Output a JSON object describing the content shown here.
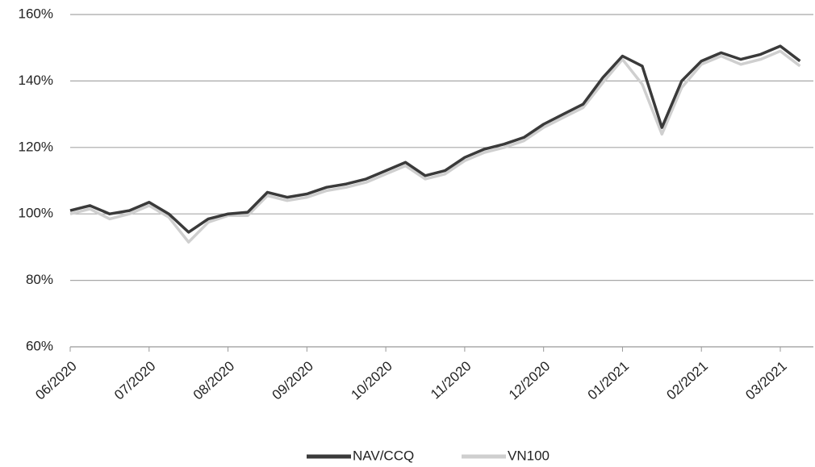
{
  "chart_data": {
    "type": "line",
    "categories": [
      "06/2020",
      null,
      null,
      null,
      "07/2020",
      null,
      null,
      null,
      "08/2020",
      null,
      null,
      null,
      "09/2020",
      null,
      null,
      null,
      "10/2020",
      null,
      null,
      null,
      "11/2020",
      null,
      null,
      null,
      "12/2020",
      null,
      null,
      null,
      "01/2021",
      null,
      null,
      null,
      "02/2021",
      null,
      null,
      null,
      "03/2021",
      null
    ],
    "series": [
      {
        "name": "NAV/CCQ",
        "color": "#3a3a3a",
        "values": [
          101,
          102.5,
          100,
          101,
          103.5,
          100,
          94.5,
          98.5,
          100,
          100.5,
          106.5,
          105,
          106,
          108,
          109,
          110.5,
          113,
          115.5,
          111.5,
          113,
          117,
          119.5,
          121,
          123,
          127,
          130,
          133,
          141,
          147.5,
          144.5,
          126,
          140,
          146,
          148.5,
          146.5,
          148,
          150.5,
          146
        ]
      },
      {
        "name": "VN100",
        "color": "#cfcfcf",
        "values": [
          100,
          101.5,
          98.5,
          100,
          102.5,
          99,
          91.5,
          97.5,
          99.5,
          99.5,
          105.5,
          104,
          105,
          107,
          108,
          109.5,
          112,
          114.5,
          110.5,
          112,
          116,
          118.5,
          120,
          122,
          126,
          129,
          132,
          139.5,
          146.5,
          139,
          124,
          138,
          145,
          147.5,
          145,
          146.5,
          149,
          144.5
        ]
      }
    ],
    "ylim": [
      60,
      160
    ],
    "yticks": [
      {
        "value": 60,
        "label": "60%"
      },
      {
        "value": 80,
        "label": "80%"
      },
      {
        "value": 100,
        "label": "100%"
      },
      {
        "value": 120,
        "label": "120%"
      },
      {
        "value": 140,
        "label": "140%"
      },
      {
        "value": 160,
        "label": "160%"
      }
    ],
    "grid": true,
    "legend": "bottom"
  }
}
